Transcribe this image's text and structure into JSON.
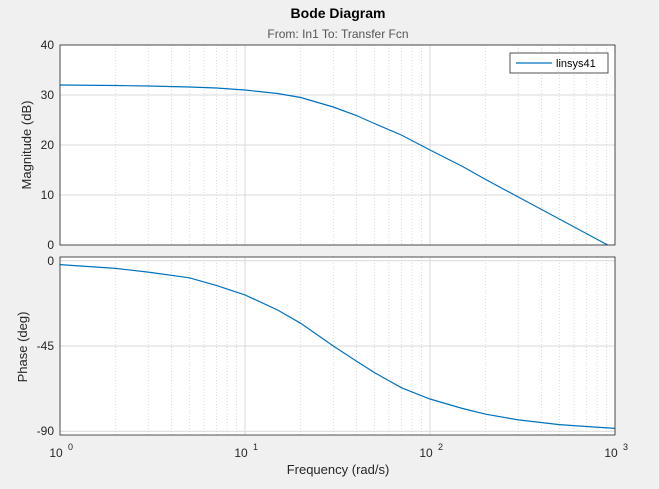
{
  "chart_data": {
    "type": "line",
    "title": "Bode Diagram",
    "subtitle": "From: In1  To: Transfer Fcn",
    "xlabel": "Frequency  (rad/s)",
    "xscale": "log",
    "xlim": [
      1,
      1000
    ],
    "x_ticks": [
      {
        "base": "10",
        "exp": "0"
      },
      {
        "base": "10",
        "exp": "1"
      },
      {
        "base": "10",
        "exp": "2"
      },
      {
        "base": "10",
        "exp": "3"
      }
    ],
    "grid": true,
    "legend": {
      "entries": [
        "linsys41"
      ],
      "placement": "top-right"
    },
    "series_color": "#0072bd",
    "panels": [
      {
        "name": "magnitude",
        "ylabel": "Magnitude (dB)",
        "ylim": [
          0,
          40
        ],
        "yticks": [
          "0",
          "10",
          "20",
          "30",
          "40"
        ],
        "series": [
          {
            "name": "linsys41",
            "x": [
              1,
              2,
              3,
              5,
              7,
              10,
              15,
              20,
              30,
              40,
              50,
              70,
              100,
              150,
              200,
              300,
              500,
              700,
              1000
            ],
            "y": [
              32,
              31.9,
              31.8,
              31.6,
              31.4,
              31.0,
              30.3,
              29.5,
              27.6,
              25.9,
              24.3,
              22.0,
              19.0,
              15.7,
              13.1,
              9.6,
              5.2,
              2.3,
              -0.8
            ]
          }
        ]
      },
      {
        "name": "phase",
        "ylabel": "Phase (deg)",
        "ylim": [
          -92,
          2
        ],
        "yticks": [
          "0",
          "-45",
          "-90"
        ],
        "series": [
          {
            "name": "linsys41",
            "x": [
              1,
              2,
              3,
              5,
              7,
              10,
              15,
              20,
              30,
              40,
              50,
              70,
              100,
              150,
              200,
              300,
              500,
              700,
              1000
            ],
            "y": [
              -2,
              -4,
              -6,
              -9,
              -13,
              -18,
              -26,
              -33,
              -45,
              -53,
              -59,
              -67,
              -73,
              -78,
              -81,
              -84,
              -86.5,
              -87.5,
              -88.5
            ]
          }
        ]
      }
    ]
  }
}
